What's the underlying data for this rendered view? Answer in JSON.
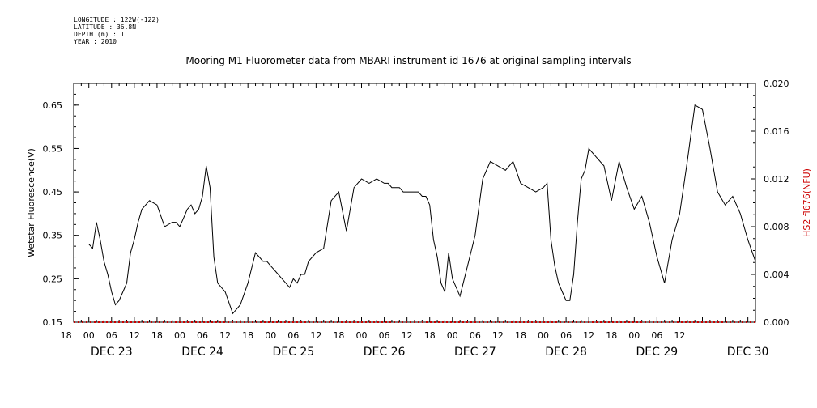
{
  "meta": {
    "longitude": "LONGITUDE : 122W(-122)",
    "latitude": "LATITUDE : 36.8N",
    "depth": "DEPTH (m) : 1",
    "year": "YEAR : 2010"
  },
  "chart_data": {
    "type": "line",
    "title": "Mooring M1 Fluorometer data from MBARI instrument id 1676 at original sampling intervals",
    "ylabel": "Wetstar Fluorescence(V)",
    "ylabel_right": "HS2 fl676(NFU)",
    "ylim": [
      0.15,
      0.7
    ],
    "ylim_right": [
      0.0,
      0.02
    ],
    "yticks": [
      "0.15",
      "0.25",
      "0.35",
      "0.45",
      "0.55",
      "0.65"
    ],
    "yticks_right": [
      "0.000",
      "0.004",
      "0.008",
      "0.012",
      "0.016",
      "0.020"
    ],
    "xlim_hours": [
      -4,
      176
    ],
    "hour_tick_labels": [
      "18",
      "00",
      "06",
      "12",
      "18",
      "00",
      "06",
      "12",
      "18",
      "00",
      "06",
      "12",
      "18",
      "00",
      "06",
      "12",
      "18",
      "00",
      "06",
      "12",
      "18",
      "00",
      "06",
      "12",
      "18",
      "00",
      "06",
      "12"
    ],
    "day_labels": [
      "DEC 23",
      "DEC 24",
      "DEC 25",
      "DEC 26",
      "DEC 27",
      "DEC 28",
      "DEC 29",
      "DEC 30"
    ],
    "series": [
      {
        "name": "Wetstar Fluorescence(V)",
        "color": "#000000",
        "x_hours": [
          0,
          1,
          2,
          3,
          4,
          5,
          6,
          7,
          8,
          9,
          10,
          11,
          12,
          13,
          14,
          16,
          18,
          20,
          22,
          23,
          24,
          25,
          26,
          27,
          28,
          29,
          30,
          31,
          32,
          33,
          34,
          36,
          38,
          40,
          42,
          44,
          45,
          46,
          47,
          48,
          49,
          50,
          51,
          52,
          53,
          54,
          55,
          56,
          57,
          58,
          60,
          62,
          64,
          66,
          68,
          70,
          72,
          74,
          76,
          78,
          79,
          80,
          81,
          82,
          83,
          84,
          85,
          86,
          87,
          88,
          89,
          90,
          91,
          92,
          93,
          94,
          95,
          96,
          98,
          100,
          102,
          104,
          106,
          108,
          110,
          112,
          114,
          116,
          118,
          120,
          121,
          122,
          123,
          124,
          125,
          126,
          127,
          128,
          129,
          130,
          131,
          132,
          134,
          136,
          138,
          140,
          142,
          144,
          146,
          148,
          150,
          152,
          154,
          156,
          158,
          160,
          162,
          164,
          166,
          168,
          170,
          172,
          174,
          176
        ],
        "y": [
          0.33,
          0.32,
          0.38,
          0.34,
          0.29,
          0.26,
          0.22,
          0.19,
          0.2,
          0.22,
          0.24,
          0.31,
          0.34,
          0.38,
          0.41,
          0.43,
          0.42,
          0.37,
          0.38,
          0.38,
          0.37,
          0.39,
          0.41,
          0.42,
          0.4,
          0.41,
          0.44,
          0.51,
          0.46,
          0.3,
          0.24,
          0.22,
          0.17,
          0.19,
          0.24,
          0.31,
          0.3,
          0.29,
          0.29,
          0.28,
          0.27,
          0.26,
          0.25,
          0.24,
          0.23,
          0.25,
          0.24,
          0.26,
          0.26,
          0.29,
          0.31,
          0.32,
          0.43,
          0.45,
          0.36,
          0.46,
          0.48,
          0.47,
          0.48,
          0.47,
          0.47,
          0.46,
          0.46,
          0.46,
          0.45,
          0.45,
          0.45,
          0.45,
          0.45,
          0.44,
          0.44,
          0.42,
          0.34,
          0.3,
          0.24,
          0.22,
          0.31,
          0.25,
          0.21,
          0.28,
          0.35,
          0.48,
          0.52,
          0.51,
          0.5,
          0.52,
          0.47,
          0.46,
          0.45,
          0.46,
          0.47,
          0.34,
          0.28,
          0.24,
          0.22,
          0.2,
          0.2,
          0.26,
          0.38,
          0.48,
          0.5,
          0.55,
          0.53,
          0.51,
          0.43,
          0.52,
          0.46,
          0.41,
          0.44,
          0.38,
          0.3,
          0.24,
          0.34,
          0.4,
          0.52,
          0.65,
          0.64,
          0.55,
          0.45,
          0.42,
          0.44,
          0.4,
          0.34,
          0.29
        ]
      },
      {
        "name": "HS2 fl676(NFU)",
        "color": "#cc0000",
        "x_hours": [
          -4,
          176
        ],
        "y": [
          0.0,
          0.0
        ]
      }
    ],
    "grid": false
  }
}
